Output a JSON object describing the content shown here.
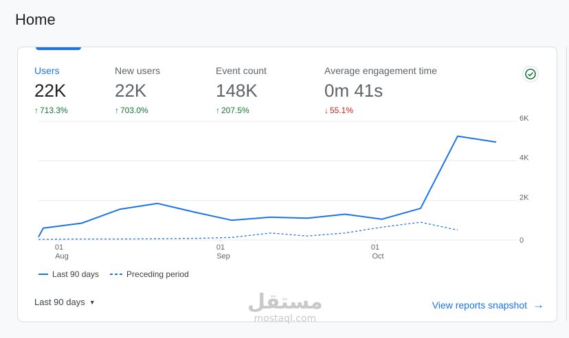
{
  "page": {
    "title": "Home"
  },
  "metrics": [
    {
      "label": "Users",
      "value": "22K",
      "change": "713.3%",
      "direction": "up"
    },
    {
      "label": "New users",
      "value": "22K",
      "change": "703.0%",
      "direction": "up"
    },
    {
      "label": "Event count",
      "value": "148K",
      "change": "207.5%",
      "direction": "up"
    },
    {
      "label": "Average engagement time",
      "value": "0m 41s",
      "change": "55.1%",
      "direction": "down"
    }
  ],
  "icons": {
    "arrow_up": "↑",
    "arrow_down": "↓",
    "check": "check-circle-icon",
    "dropdown": "▼",
    "forward": "→"
  },
  "colors": {
    "accent": "#1a73e8",
    "positive": "#137333",
    "negative": "#c5221f"
  },
  "chart_data": {
    "type": "line",
    "x_tick_labels": [
      {
        "day": "01",
        "month": "Aug"
      },
      {
        "day": "01",
        "month": "Sep"
      },
      {
        "day": "01",
        "month": "Oct"
      }
    ],
    "y_tick_labels": [
      "0",
      "2K",
      "4K",
      "6K"
    ],
    "ylim": [
      0,
      6000
    ],
    "series": [
      {
        "name": "Last 90 days",
        "style": "solid",
        "values": [
          150,
          600,
          850,
          1550,
          1850,
          1400,
          1000,
          1150,
          1100,
          1300,
          1050,
          1600,
          5250,
          4950
        ]
      },
      {
        "name": "Preceding period",
        "style": "dashed",
        "values": [
          30,
          30,
          50,
          50,
          60,
          80,
          130,
          350,
          200,
          350,
          650,
          900,
          500
        ]
      }
    ],
    "grid": true,
    "legend_position": "bottom-left"
  },
  "legend": {
    "series1": "Last 90 days",
    "series2": "Preceding period"
  },
  "footer": {
    "date_range": "Last 90 days",
    "snapshot_link": "View reports snapshot"
  },
  "watermark": {
    "arabic": "مستقل",
    "latin": "mostaql.com"
  }
}
